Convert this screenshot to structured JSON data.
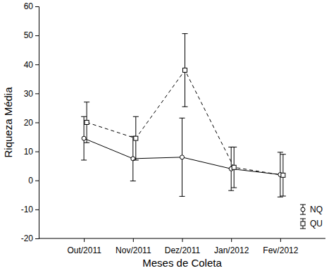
{
  "chart_data": {
    "type": "line",
    "x_label": "Meses de Coleta",
    "y_label": "Riqueza Média",
    "categories": [
      "Out/2011",
      "Nov/2011",
      "Dez/2011",
      "Jan/2012",
      "Fev/2012"
    ],
    "ylim": [
      -20,
      60
    ],
    "yticks": [
      -20,
      -10,
      0,
      10,
      20,
      30,
      40,
      50,
      60
    ],
    "legend": "lower right",
    "series": [
      {
        "name": "NQ",
        "color": "#000000",
        "marker": "circle",
        "line_style": "solid",
        "values": [
          14.5,
          7.5,
          8,
          4,
          2
        ],
        "errors": [
          7.5,
          7.7,
          13.5,
          7.5,
          7.7
        ]
      },
      {
        "name": "QU",
        "color": "#000000",
        "marker": "square",
        "line_style": "dashed",
        "values": [
          20,
          14.5,
          38,
          4.5,
          1.8
        ],
        "errors": [
          7,
          7.5,
          12.6,
          7,
          7.2
        ]
      }
    ]
  }
}
